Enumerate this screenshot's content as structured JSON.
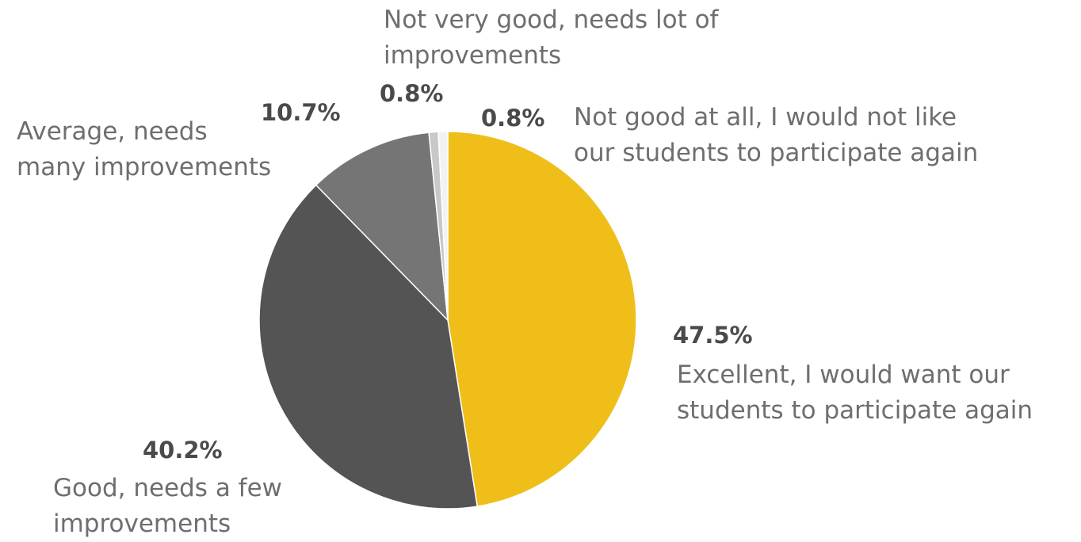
{
  "chart_data": {
    "type": "pie",
    "slices": [
      {
        "label_lines": [
          "Excellent, I would want our",
          "students to participate again"
        ],
        "value": 47.5,
        "value_label": "47.5%",
        "color": "#efbe19"
      },
      {
        "label_lines": [
          "Good, needs a few",
          "improvements"
        ],
        "value": 40.2,
        "value_label": "40.2%",
        "color": "#545454"
      },
      {
        "label_lines": [
          "Average, needs",
          "many improvements"
        ],
        "value": 10.7,
        "value_label": "10.7%",
        "color": "#757575"
      },
      {
        "label_lines": [
          "Not very good, needs lot of",
          "improvements"
        ],
        "value": 0.8,
        "value_label": "0.8%",
        "color": "#c8c8c8"
      },
      {
        "label_lines": [
          "Not good at all, I would not like",
          "our students to participate again"
        ],
        "value": 0.8,
        "value_label": "0.8%",
        "color": "#f2f2f2"
      }
    ]
  }
}
